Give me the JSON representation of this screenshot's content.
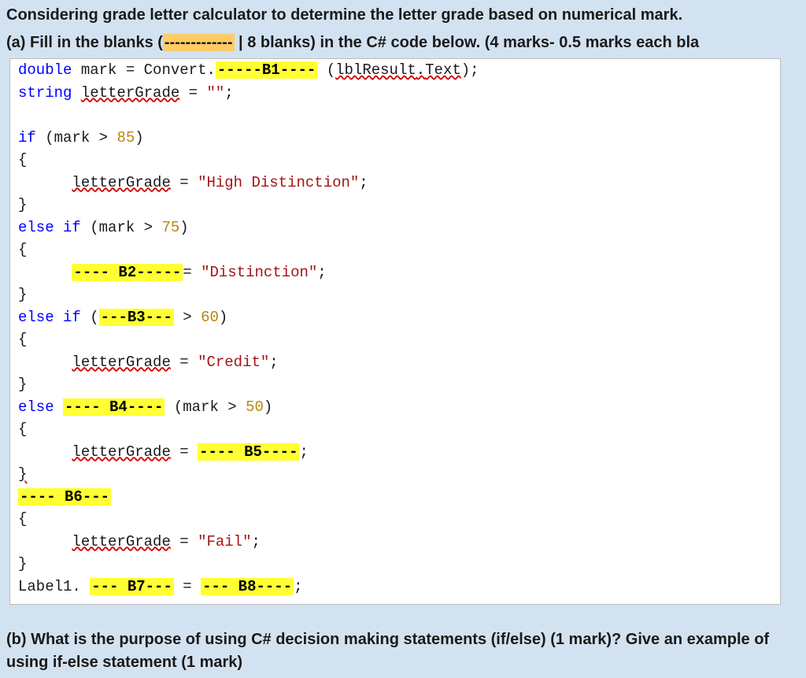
{
  "heading": "Considering grade letter calculator to determine the letter grade based on numerical mark.",
  "partA_prefix": "(a) Fill in the blanks (",
  "partA_blankdemo": "-------------",
  "partA_suffix": " | 8 blanks) in the C# code below. (4 marks- 0.5 marks each bla",
  "code": {
    "kw_double": "double",
    "kw_string": "string",
    "kw_if": "if",
    "kw_else": "else",
    "kw_elseif": "else if",
    "id_mark": "mark",
    "id_convert": "Convert",
    "id_letterGrade": "letterGrade",
    "id_lblResult": "lblResult",
    "id_Text": "Text",
    "id_Label1": "Label1",
    "lit_85": "85",
    "lit_75": "75",
    "lit_60": "60",
    "lit_50": "50",
    "str_empty": "\"\"",
    "str_hd": "\"High Distinction\"",
    "str_d": "\"Distinction\"",
    "str_c": "\"Credit\"",
    "str_f": "\"Fail\"",
    "b1": "-----B1----",
    "b2": "---- B2-----",
    "b3": "---B3---",
    "b4": "---- B4----",
    "b5": "---- B5----",
    "b6": "---- B6---",
    "b7": "--- B7---",
    "b8": "--- B8----"
  },
  "partB": "(b) What is the purpose of using C# decision making statements (if/else) (1 mark)? Give an example of using if-else statement (1 mark)"
}
